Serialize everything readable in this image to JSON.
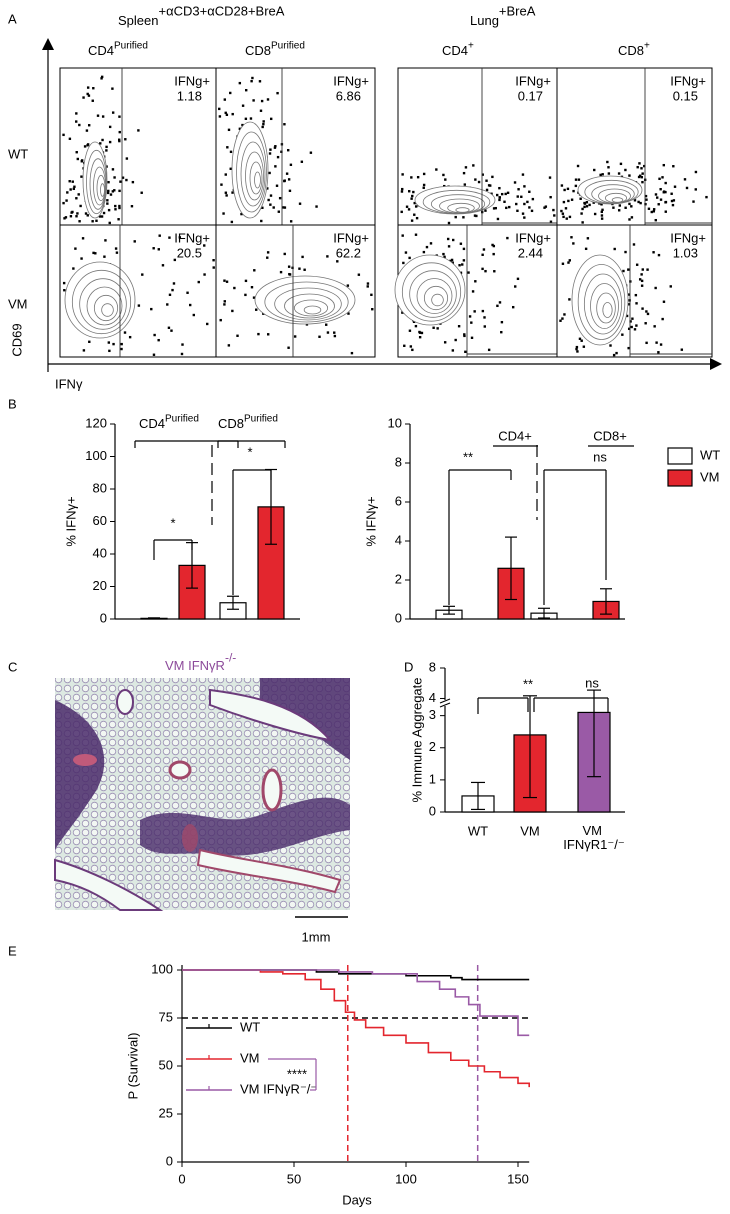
{
  "panel_labels": [
    "A",
    "B",
    "C",
    "D",
    "E"
  ],
  "flow": {
    "groups": [
      {
        "name": "Spleen",
        "sup": "+αCD3+αCD28+BreA"
      },
      {
        "name": "Lung",
        "sup": "+BreA"
      }
    ],
    "columns": [
      {
        "name": "CD4",
        "sup": "Purified"
      },
      {
        "name": "CD8",
        "sup": "Purified"
      },
      {
        "name": "CD4",
        "sup": "+"
      },
      {
        "name": "CD8",
        "sup": "+"
      }
    ],
    "rows": [
      "WT",
      "VM"
    ],
    "gate_label": "IFNg+",
    "gate_values": [
      [
        1.18,
        6.86,
        0.17,
        0.15
      ],
      [
        20.5,
        62.2,
        2.44,
        1.03
      ]
    ],
    "y_label": "CD69",
    "x_label": "IFNγ"
  },
  "histology": {
    "title": "VM IFNγR",
    "title_sup": "-/-",
    "scale_bar": "1mm"
  },
  "chart_data": [
    {
      "type": "bar",
      "categories": [
        "CD4",
        "CD8"
      ],
      "category_sups": [
        "Purified",
        "Purified"
      ],
      "series": [
        {
          "name": "WT",
          "color": "#ffffff",
          "values": [
            0.4,
            10
          ],
          "errors": [
            0.3,
            4
          ]
        },
        {
          "name": "VM",
          "color": "#e3262e",
          "values": [
            33,
            69
          ],
          "errors": [
            14,
            23
          ]
        }
      ],
      "ylabel": "% IFNγ+",
      "ylim": [
        0,
        120
      ],
      "yticks": [
        0,
        20,
        40,
        60,
        80,
        100,
        120
      ],
      "significance": [
        "*",
        "*"
      ],
      "legend": false
    },
    {
      "type": "bar",
      "categories": [
        "CD4+",
        "CD8+"
      ],
      "series": [
        {
          "name": "WT",
          "color": "#ffffff",
          "values": [
            0.45,
            0.3
          ],
          "errors": [
            0.2,
            0.25
          ]
        },
        {
          "name": "VM",
          "color": "#e3262e",
          "values": [
            2.6,
            0.9
          ],
          "errors": [
            1.6,
            0.65
          ]
        }
      ],
      "ylabel": "% IFNγ+",
      "ylim": [
        0,
        10
      ],
      "yticks": [
        0,
        2,
        4,
        6,
        8,
        10
      ],
      "significance": [
        "**",
        "ns"
      ],
      "legend": "right"
    },
    {
      "type": "broken_bar",
      "categories": [
        "WT",
        "VM",
        "VM IFNγR1⁻/⁻"
      ],
      "values": [
        0.5,
        2.4,
        3.1
      ],
      "errors": [
        0.42,
        1.95,
        2.0
      ],
      "colors": [
        "#ffffff",
        "#e3262e",
        "#9a5aa6"
      ],
      "ylabel": "% Immune Aggregate",
      "ylim": [
        0,
        8
      ],
      "yticks": [
        0,
        1,
        2,
        3,
        4,
        8
      ],
      "axis_break": [
        3.3,
        3.8
      ],
      "significance": [
        "**",
        "ns"
      ]
    },
    {
      "type": "line",
      "step": true,
      "xlabel": "Days",
      "ylabel": "P (Survival)",
      "xlim": [
        0,
        155
      ],
      "xticks": [
        0,
        50,
        100,
        150
      ],
      "ylim": [
        0,
        100
      ],
      "yticks": [
        0,
        25,
        50,
        75,
        100
      ],
      "series": [
        {
          "name": "WT",
          "color": "#000000",
          "x": [
            0,
            60,
            70,
            100,
            120,
            125,
            155
          ],
          "values": [
            100,
            99,
            98,
            97,
            96,
            95,
            95
          ]
        },
        {
          "name": "VM",
          "color": "#e3262e",
          "x": [
            0,
            35,
            45,
            55,
            62,
            68,
            73,
            77,
            82,
            90,
            100,
            110,
            120,
            128,
            135,
            142,
            150,
            155
          ],
          "values": [
            100,
            99,
            98,
            95,
            90,
            84,
            78,
            74,
            70,
            66,
            62,
            57,
            53,
            50,
            47,
            44,
            41,
            39
          ]
        },
        {
          "name": "VM IFNγR⁻/⁻",
          "color": "#9a5aa6",
          "x": [
            0,
            70,
            85,
            105,
            115,
            122,
            128,
            133,
            148,
            150,
            155
          ],
          "values": [
            100,
            99,
            98,
            94,
            90,
            86,
            82,
            76,
            76,
            66,
            66
          ]
        }
      ],
      "hlines": [
        {
          "value": 75,
          "color": "#000000"
        }
      ],
      "vlines": [
        {
          "value": 74,
          "color": "#e3262e"
        },
        {
          "value": 132,
          "color": "#9a5aa6"
        }
      ],
      "significance": "****",
      "significance_color": "#9a5aa6"
    }
  ]
}
